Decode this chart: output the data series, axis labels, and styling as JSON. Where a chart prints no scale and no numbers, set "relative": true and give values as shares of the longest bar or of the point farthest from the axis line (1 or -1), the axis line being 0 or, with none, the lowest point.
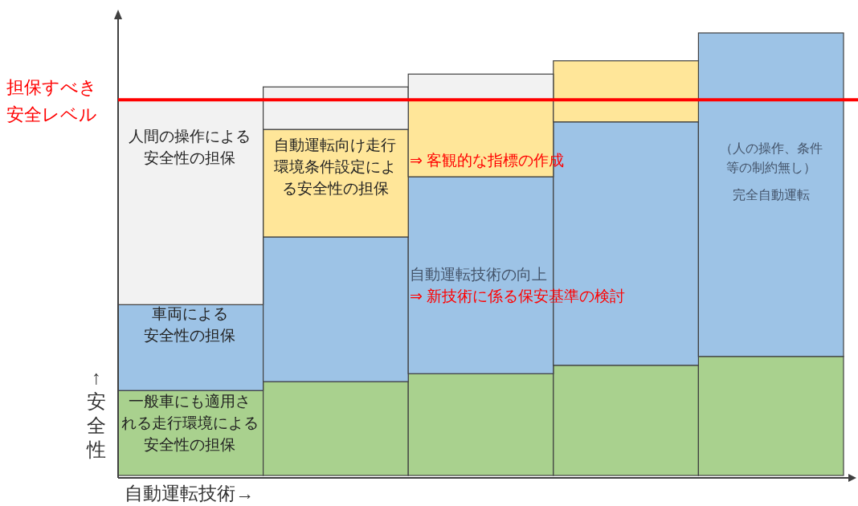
{
  "chart_data": {
    "type": "bar",
    "stacked": true,
    "relative": true,
    "categories": [
      null,
      null,
      null,
      null,
      null
    ],
    "series": [
      {
        "color": "#a9d18e",
        "values": [
          0.192,
          0.212,
          0.23,
          0.249,
          0.269
        ]
      },
      {
        "color": "#9dc3e6",
        "values": [
          0.194,
          0.327,
          0.445,
          0.55,
          0.731
        ]
      },
      {
        "color": "#ffe699",
        "values": [
          0,
          0.243,
          0.174,
          0.138,
          0
        ]
      },
      {
        "color": "#f2f2f2",
        "values": [
          0.463,
          0.096,
          0.058,
          0,
          0
        ]
      }
    ],
    "xlabel": "自動運転技術→",
    "ylabel": "↑安全性",
    "ref_lines": [
      {
        "axis": "y",
        "value": 0.849,
        "label": "担保すべき安全レベル",
        "color": "#ff0000"
      }
    ],
    "annotations": [
      "人間の操作による安全性の担保",
      "車両による安全性の担保",
      "一般車にも適用される走行環境による安全性の担保",
      "自動運転向け走行環境条件設定による安全性の担保",
      "⇒ 客観的な指標の作成",
      "自動運転技術の向上",
      "⇒ 新技術に係る保安基準の検討",
      "（人の操作、条件等の制約無し）",
      "完全自動運転"
    ]
  }
}
